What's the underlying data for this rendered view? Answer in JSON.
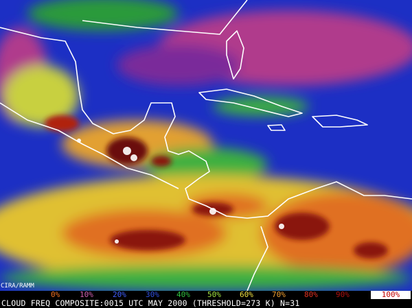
{
  "credit": "CIRA/RAMM",
  "legend": {
    "labels": [
      "0%",
      "10%",
      "20%",
      "30%",
      "40%",
      "50%",
      "60%",
      "70%",
      "80%",
      "90%",
      "100%"
    ]
  },
  "caption": "CLOUD FREQ COMPOSITE:0015 UTC MAY 2000 (THRESHOLD=273 K) N=31"
}
